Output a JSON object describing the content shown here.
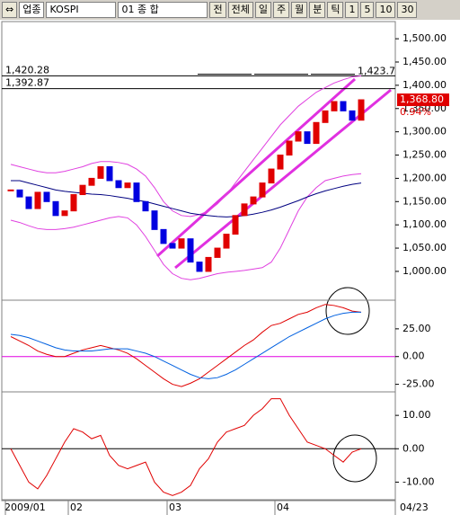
{
  "toolbar": {
    "group": "업종",
    "code": "KOSPI",
    "name": "01 종  합",
    "buttons": [
      "전",
      "전체"
    ],
    "periods": [
      "일",
      "주",
      "월",
      "분",
      "틱"
    ],
    "units": [
      "1",
      "5",
      "10",
      "30"
    ]
  },
  "chart_data": [
    {
      "type": "candlestick",
      "categories": [
        "2009/01",
        null,
        null,
        null,
        null,
        null,
        null,
        "02",
        null,
        null,
        null,
        null,
        null,
        null,
        null,
        null,
        null,
        null,
        "03",
        null,
        null,
        null,
        null,
        null,
        null,
        null,
        null,
        null,
        null,
        null,
        "04",
        null,
        null,
        null,
        null,
        null,
        null,
        null,
        null,
        "04/23"
      ],
      "close": [
        1175,
        1160,
        1135,
        1170,
        1150,
        1120,
        1130,
        1165,
        1185,
        1200,
        1225,
        1195,
        1180,
        1190,
        1150,
        1130,
        1090,
        1060,
        1050,
        1070,
        1020,
        1000,
        1030,
        1050,
        1080,
        1120,
        1145,
        1160,
        1190,
        1220,
        1250,
        1280,
        1300,
        1275,
        1320,
        1345,
        1365,
        1345,
        1325,
        1368.8
      ],
      "up_color": "#e00000",
      "down_color": "#0000e0",
      "series": [
        {
          "name": "upper",
          "color": "#e040e0",
          "values": [
            1230,
            1225,
            1220,
            1215,
            1212,
            1212,
            1215,
            1220,
            1225,
            1232,
            1236,
            1236,
            1234,
            1230,
            1220,
            1205,
            1180,
            1150,
            1130,
            1120,
            1118,
            1122,
            1130,
            1145,
            1165,
            1190,
            1215,
            1240,
            1265,
            1290,
            1315,
            1335,
            1355,
            1370,
            1385,
            1395,
            1405,
            1412,
            1418,
            1420
          ]
        },
        {
          "name": "lower",
          "color": "#e040e0",
          "values": [
            1110,
            1105,
            1098,
            1092,
            1090,
            1090,
            1092,
            1095,
            1100,
            1105,
            1110,
            1115,
            1118,
            1115,
            1100,
            1075,
            1045,
            1015,
            995,
            985,
            982,
            985,
            990,
            995,
            998,
            1000,
            1002,
            1005,
            1008,
            1020,
            1050,
            1090,
            1130,
            1160,
            1180,
            1195,
            1200,
            1205,
            1208,
            1210
          ]
        },
        {
          "name": "ma",
          "color": "#000080",
          "values": [
            1195,
            1195,
            1190,
            1185,
            1180,
            1175,
            1172,
            1170,
            1168,
            1166,
            1165,
            1163,
            1160,
            1157,
            1153,
            1150,
            1145,
            1140,
            1135,
            1130,
            1125,
            1122,
            1120,
            1118,
            1117,
            1118,
            1120,
            1123,
            1127,
            1132,
            1138,
            1145,
            1152,
            1160,
            1167,
            1173,
            1178,
            1183,
            1187,
            1190
          ]
        }
      ],
      "ref_lines": [
        {
          "value": 1420.28,
          "label": "1,420.28"
        },
        {
          "value": 1392.87,
          "label": "1,392.87"
        }
      ],
      "high_label": {
        "value": 1423.7,
        "label": "1,423.7"
      },
      "last_label": {
        "value": 1368.8,
        "label": "1,368.80"
      },
      "change": "0.94%",
      "ylim": [
        940,
        1535
      ],
      "yticks": [
        {
          "value": 1500,
          "label": "1,500.00"
        },
        {
          "value": 1450,
          "label": "1,450.00"
        },
        {
          "value": 1400,
          "label": "1,400.00"
        },
        {
          "value": 1350,
          "label": "1,350.00"
        },
        {
          "value": 1300,
          "label": "1,300.00"
        },
        {
          "value": 1250,
          "label": "1,250.00"
        },
        {
          "value": 1200,
          "label": "1,200.00"
        },
        {
          "value": 1150,
          "label": "1,150.00"
        },
        {
          "value": 1100,
          "label": "1,100.00"
        },
        {
          "value": 1050,
          "label": "1,050.00"
        },
        {
          "value": 1000,
          "label": "1,000.00"
        }
      ]
    },
    {
      "type": "line",
      "series": [
        {
          "name": "macd",
          "color": "#e00000",
          "values": [
            18,
            14,
            10,
            5,
            2,
            0,
            0,
            3,
            6,
            8,
            10,
            8,
            6,
            3,
            -2,
            -8,
            -14,
            -20,
            -25,
            -27,
            -24,
            -20,
            -14,
            -8,
            -2,
            4,
            10,
            15,
            22,
            28,
            30,
            34,
            38,
            40,
            44,
            47,
            46,
            44,
            41,
            40
          ]
        },
        {
          "name": "signal",
          "color": "#0060e0",
          "values": [
            20,
            19,
            17,
            14,
            11,
            8,
            6,
            5,
            5,
            5,
            6,
            7,
            7,
            7,
            5,
            3,
            0,
            -4,
            -8,
            -12,
            -16,
            -19,
            -20,
            -19,
            -16,
            -12,
            -7,
            -2,
            3,
            8,
            13,
            18,
            22,
            26,
            30,
            34,
            37,
            39,
            40,
            40
          ]
        }
      ],
      "zero_color": "#e000e0",
      "ylim": [
        -31,
        50
      ],
      "yticks": [
        {
          "value": 25,
          "label": "25.00"
        },
        {
          "value": 0,
          "label": "0.00"
        },
        {
          "value": -25,
          "label": "-25.00"
        }
      ]
    },
    {
      "type": "line",
      "series": [
        {
          "name": "osc",
          "color": "#e00000",
          "values": [
            0,
            -5,
            -10,
            -12,
            -8,
            -3,
            2,
            6,
            5,
            3,
            4,
            -2,
            -5,
            -6,
            -5,
            -4,
            -10,
            -13,
            -14,
            -13,
            -11,
            -6,
            -3,
            2,
            5,
            6,
            7,
            10,
            12,
            15,
            15,
            10,
            6,
            2,
            1,
            0,
            -2,
            -4,
            -1,
            0
          ]
        }
      ],
      "zero_color": "#000000",
      "ylim": [
        -15,
        16.5
      ],
      "yticks": [
        {
          "value": 10,
          "label": "10.00"
        },
        {
          "value": 0,
          "label": "0.00"
        },
        {
          "value": -10,
          "label": "-10.00"
        }
      ]
    }
  ]
}
